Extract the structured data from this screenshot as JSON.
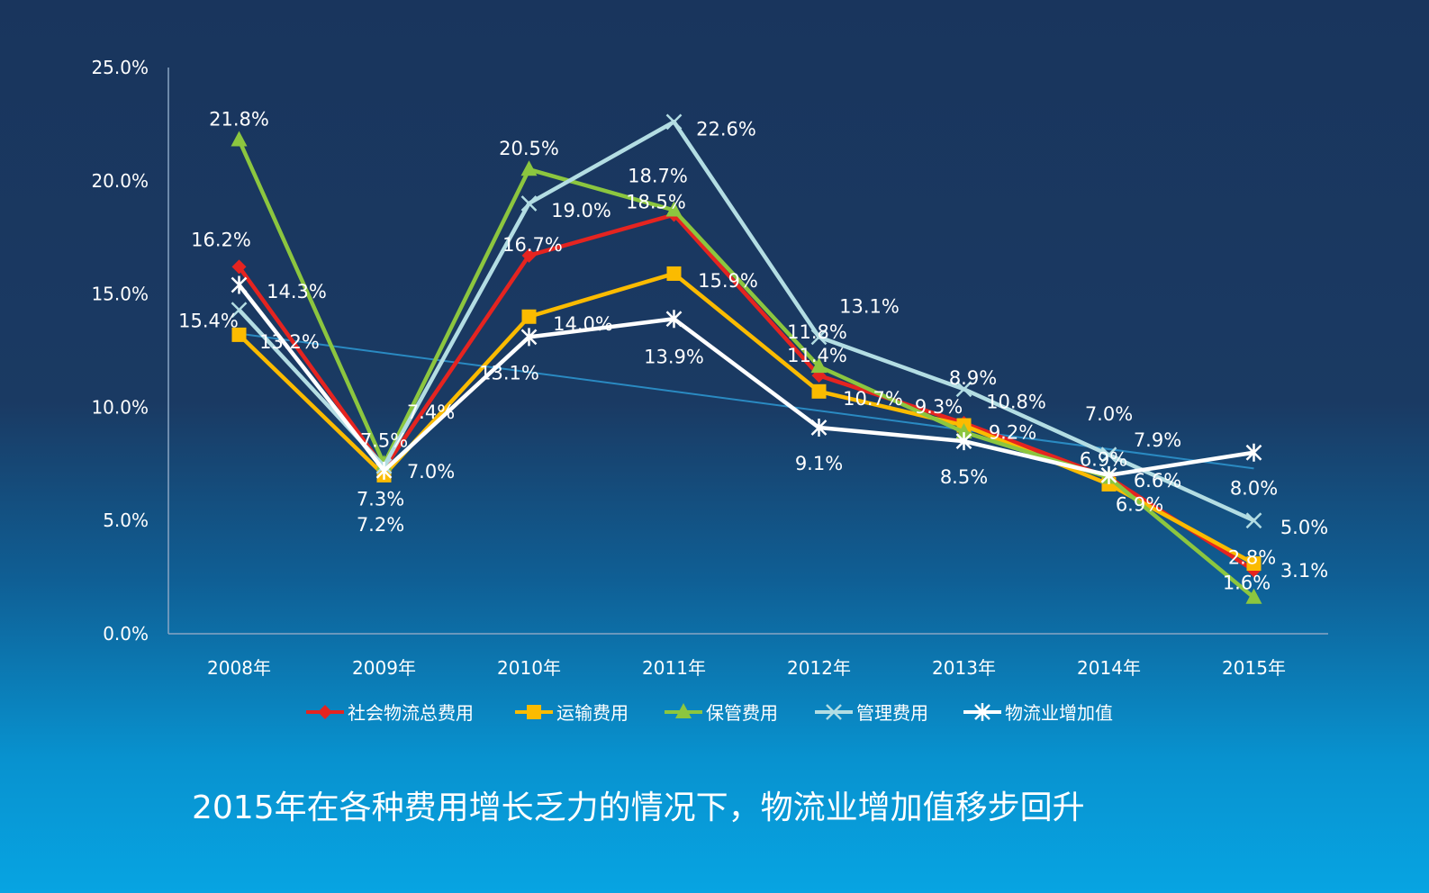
{
  "chart_data": {
    "type": "line",
    "categories": [
      "2008年",
      "2009年",
      "2010年",
      "2011年",
      "2012年",
      "2013年",
      "2014年",
      "2015年"
    ],
    "ylim": [
      0,
      25
    ],
    "yticks": [
      "0.0%",
      "5.0%",
      "10.0%",
      "15.0%",
      "20.0%",
      "25.0%"
    ],
    "grid": false,
    "legend": "bottom",
    "series": [
      {
        "name": "社会物流总费用",
        "color": "#e52420",
        "marker": "diamond",
        "values": [
          16.2,
          7.3,
          16.7,
          18.5,
          11.4,
          9.3,
          6.9,
          2.8
        ]
      },
      {
        "name": "运输费用",
        "color": "#fbbb00",
        "marker": "square",
        "values": [
          13.2,
          7.0,
          14.0,
          15.9,
          10.7,
          9.2,
          6.6,
          3.1
        ]
      },
      {
        "name": "保管费用",
        "color": "#8cc63f",
        "marker": "triangle",
        "values": [
          21.8,
          7.5,
          20.5,
          18.7,
          11.8,
          8.9,
          6.9,
          1.6
        ]
      },
      {
        "name": "管理费用",
        "color": "#b3dde3",
        "marker": "x",
        "values": [
          14.3,
          7.4,
          19.0,
          22.6,
          13.1,
          10.8,
          7.9,
          5.0
        ]
      },
      {
        "name": "物流业增加值",
        "color": "#ffffff",
        "marker": "star",
        "values": [
          15.4,
          7.2,
          13.1,
          13.9,
          9.1,
          8.5,
          7.0,
          8.0
        ],
        "trendline": true
      }
    ],
    "trendline_color": "#2a8ac2"
  },
  "caption": "2015年在各种费用增长乏力的情况下，物流业增加值移步回升"
}
